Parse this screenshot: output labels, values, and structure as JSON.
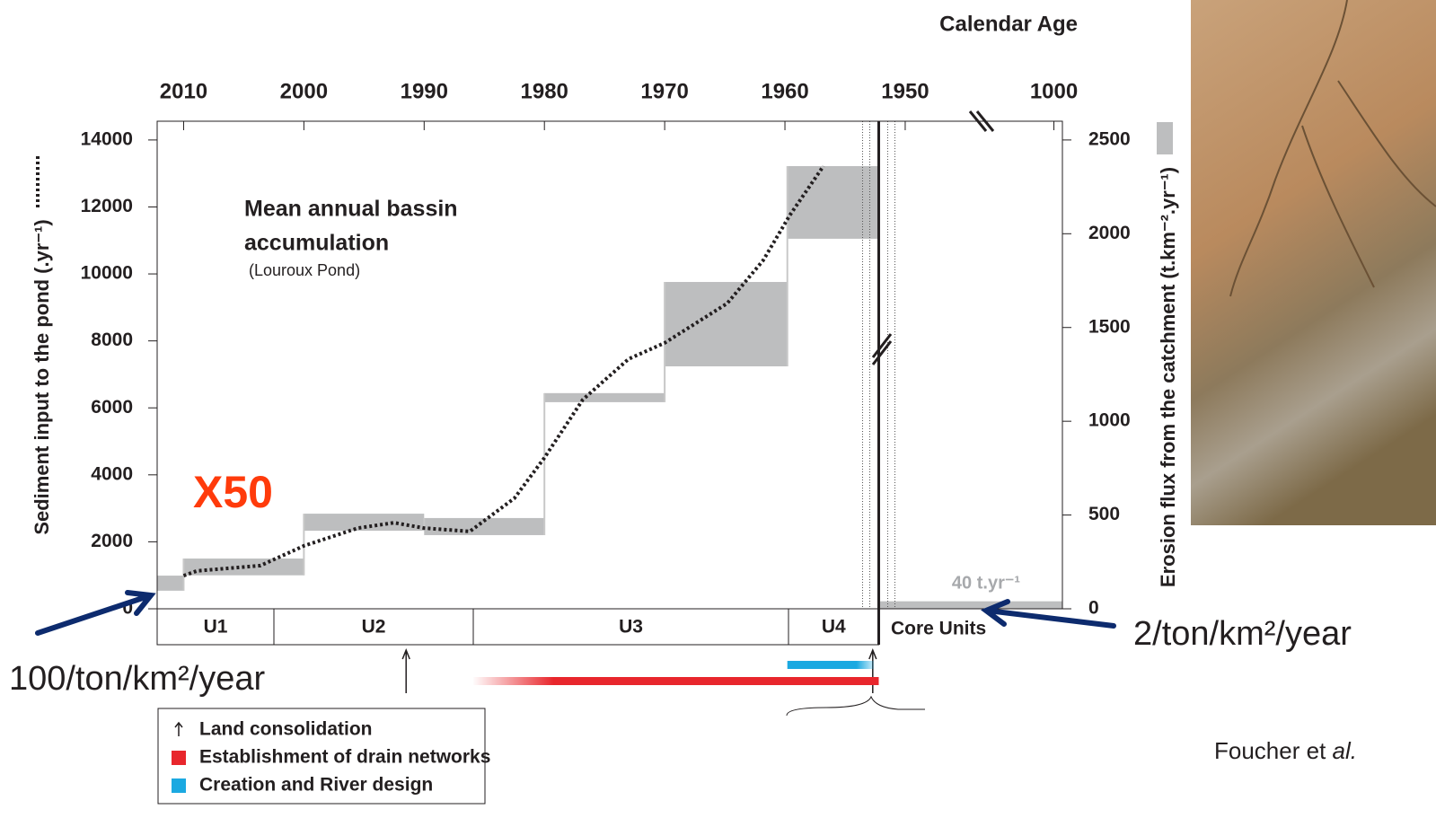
{
  "chart_data": {
    "type": "range",
    "title": "Calendar Age",
    "annotation_title": [
      "Mean annual bassin",
      "accumulation"
    ],
    "annotation_subtitle": "(Louroux Pond)",
    "ylabel": "Sediment input to the pond (.yr⁻¹)",
    "y2label": "Erosion flux from the catchment (t.km⁻².yr⁻¹)",
    "xlim": [
      2012.2,
      1943.5
    ],
    "xticks": [
      2010,
      2000,
      1990,
      1980,
      1970,
      1960,
      1950
    ],
    "x2lim": [
      1005.8,
      999.3
    ],
    "x2ticks": [
      1000
    ],
    "ylim": [
      0,
      14560
    ],
    "yticks": [
      0,
      2000,
      4000,
      6000,
      8000,
      10000,
      12000,
      14000
    ],
    "y2lim": [
      0,
      2600
    ],
    "y2ticks": [
      0,
      500,
      1000,
      1500,
      2000,
      2500
    ],
    "ranges": {
      "color": "#bdbebf",
      "x": [
        [
          2012.2,
          2010
        ],
        [
          2010,
          2000
        ],
        [
          2000,
          1990
        ],
        [
          1990,
          1980
        ],
        [
          1980,
          1970
        ],
        [
          1970,
          1959.8
        ],
        [
          1959.8,
          1952.2
        ]
      ],
      "low": [
        540,
        1000,
        2330,
        2200,
        6170,
        7240,
        11050
      ],
      "high": [
        990,
        1500,
        2840,
        2710,
        6440,
        9760,
        13220
      ]
    },
    "series": [
      {
        "color": "#231f20",
        "x": [
          2010,
          2008.9,
          2003.6,
          2000,
          1995.5,
          1992.5,
          1990,
          1986.2,
          1982.5,
          1980,
          1976.8,
          1973,
          1970,
          1964.8,
          1961.8,
          1959.6,
          1956.8
        ],
        "values": [
          990,
          1130,
          1290,
          1880,
          2410,
          2570,
          2410,
          2310,
          3300,
          4510,
          6250,
          7460,
          7940,
          9120,
          10410,
          11750,
          13220
        ]
      }
    ],
    "core": {
      "values": [
        40
      ],
      "value_labels": [
        "40 t.yr⁻¹"
      ],
      "axis": "y2",
      "color": "#bdbebf"
    },
    "units": [
      "U1",
      "U2",
      "U3",
      "U4",
      "Core Units"
    ],
    "legend": [
      {
        "name": "Land consolidation",
        "color": "#231f20",
        "x": [
          1991.5,
          1952.7
        ]
      },
      {
        "name": "Establishment of drain networks",
        "color": "#e8262c",
        "x": [
          1986,
          1952.2
        ]
      },
      {
        "name": "Creation and River design",
        "color": "#1ba9e1",
        "x": [
          1959.8,
          1952.6
        ]
      }
    ],
    "annotations": {
      "factor": "X50",
      "left": "100/ton/km²/year",
      "right": "2/ton/km²/year",
      "citation": "Foucher et",
      "citation_italic": "al."
    }
  }
}
